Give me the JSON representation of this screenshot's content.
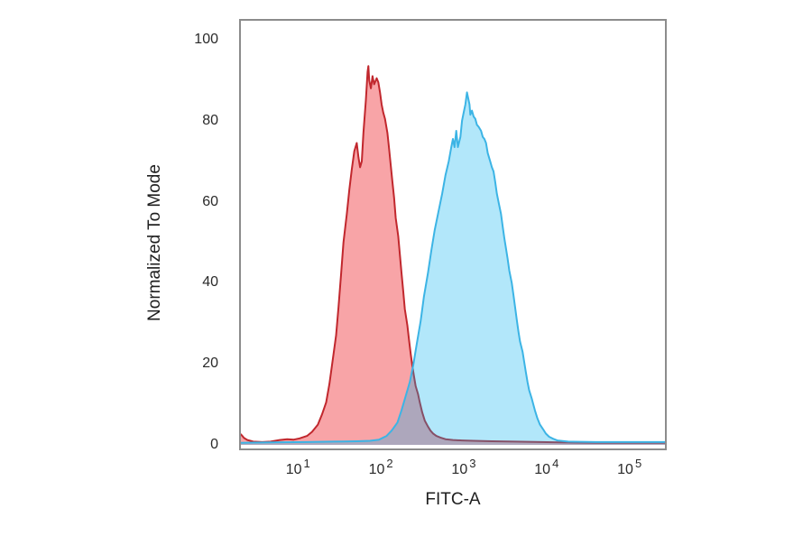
{
  "chart_data": {
    "type": "area",
    "title": "",
    "xlabel": "FITC-A",
    "ylabel": "Normalized To Mode",
    "x_scale": "log10",
    "xlim_log": [
      0.29,
      5.45
    ],
    "ylim": [
      0,
      100
    ],
    "grid": false,
    "legend": null,
    "x_ticks": [
      {
        "base": "10",
        "exp": "1",
        "log": 1
      },
      {
        "base": "10",
        "exp": "2",
        "log": 2
      },
      {
        "base": "10",
        "exp": "3",
        "log": 3
      },
      {
        "base": "10",
        "exp": "4",
        "log": 4
      },
      {
        "base": "10",
        "exp": "5",
        "log": 5
      }
    ],
    "y_ticks": [
      0,
      20,
      40,
      60,
      80,
      100
    ],
    "frame_color": "#8c8c8c",
    "series": [
      {
        "name": "red-population",
        "stroke": "#c1272d",
        "fill": "rgba(237,28,36,0.40)",
        "stroke_width": 2,
        "peak": {
          "log_x": 1.85,
          "value": 93.5
        },
        "points": [
          [
            0.29,
            3
          ],
          [
            0.32,
            2.4
          ],
          [
            0.35,
            1.7
          ],
          [
            0.39,
            1.2
          ],
          [
            0.46,
            0.8
          ],
          [
            0.57,
            0.7
          ],
          [
            0.67,
            0.8
          ],
          [
            0.78,
            1.2
          ],
          [
            0.87,
            1.4
          ],
          [
            0.95,
            1.3
          ],
          [
            1.02,
            1.6
          ],
          [
            1.11,
            2.2
          ],
          [
            1.17,
            3.2
          ],
          [
            1.24,
            5
          ],
          [
            1.29,
            7.5
          ],
          [
            1.34,
            10.5
          ],
          [
            1.38,
            15
          ],
          [
            1.42,
            21
          ],
          [
            1.46,
            27
          ],
          [
            1.49,
            34
          ],
          [
            1.52,
            42
          ],
          [
            1.55,
            50
          ],
          [
            1.59,
            57
          ],
          [
            1.62,
            63
          ],
          [
            1.65,
            68
          ],
          [
            1.68,
            72.5
          ],
          [
            1.71,
            74.5
          ],
          [
            1.73,
            71
          ],
          [
            1.75,
            68.5
          ],
          [
            1.77,
            70
          ],
          [
            1.79,
            77
          ],
          [
            1.82,
            85
          ],
          [
            1.84,
            92
          ],
          [
            1.85,
            93.5
          ],
          [
            1.86,
            90
          ],
          [
            1.88,
            88
          ],
          [
            1.9,
            91
          ],
          [
            1.92,
            89
          ],
          [
            1.95,
            90.5
          ],
          [
            1.97,
            89.5
          ],
          [
            1.99,
            87
          ],
          [
            2.01,
            84
          ],
          [
            2.03,
            82
          ],
          [
            2.05,
            80.5
          ],
          [
            2.08,
            77
          ],
          [
            2.1,
            73
          ],
          [
            2.12,
            69
          ],
          [
            2.14,
            65
          ],
          [
            2.16,
            61
          ],
          [
            2.18,
            56
          ],
          [
            2.21,
            51.5
          ],
          [
            2.23,
            47
          ],
          [
            2.25,
            42.5
          ],
          [
            2.27,
            38
          ],
          [
            2.29,
            33.5
          ],
          [
            2.32,
            29.5
          ],
          [
            2.34,
            26
          ],
          [
            2.36,
            22.5
          ],
          [
            2.38,
            19.5
          ],
          [
            2.4,
            17
          ],
          [
            2.42,
            14.5
          ],
          [
            2.45,
            12.5
          ],
          [
            2.47,
            10.5
          ],
          [
            2.5,
            8
          ],
          [
            2.53,
            6
          ],
          [
            2.57,
            4.5
          ],
          [
            2.6,
            3.5
          ],
          [
            2.63,
            2.8
          ],
          [
            2.67,
            2.2
          ],
          [
            2.72,
            1.8
          ],
          [
            2.78,
            1.4
          ],
          [
            2.87,
            1.2
          ],
          [
            2.98,
            1.1
          ],
          [
            3.12,
            1.0
          ],
          [
            3.34,
            0.9
          ],
          [
            3.61,
            0.8
          ],
          [
            3.93,
            0.7
          ],
          [
            4.15,
            0.6
          ],
          [
            4.59,
            0.5
          ],
          [
            5.02,
            0.5
          ],
          [
            5.45,
            0.5
          ]
        ]
      },
      {
        "name": "blue-population",
        "stroke": "#3cb4e5",
        "fill": "rgba(0,174,239,0.30)",
        "stroke_width": 2,
        "peak": {
          "log_x": 3.04,
          "value": 87
        },
        "points": [
          [
            0.29,
            0.5
          ],
          [
            0.67,
            0.6
          ],
          [
            1.11,
            0.7
          ],
          [
            1.43,
            0.8
          ],
          [
            1.71,
            0.9
          ],
          [
            1.87,
            1.0
          ],
          [
            1.98,
            1.3
          ],
          [
            2.07,
            2.2
          ],
          [
            2.13,
            3.5
          ],
          [
            2.2,
            5.5
          ],
          [
            2.25,
            8.5
          ],
          [
            2.3,
            12
          ],
          [
            2.35,
            15.5
          ],
          [
            2.39,
            19.5
          ],
          [
            2.43,
            24.5
          ],
          [
            2.48,
            30.5
          ],
          [
            2.52,
            36.5
          ],
          [
            2.57,
            42.5
          ],
          [
            2.61,
            48
          ],
          [
            2.65,
            53
          ],
          [
            2.7,
            58
          ],
          [
            2.74,
            62
          ],
          [
            2.78,
            66.5
          ],
          [
            2.82,
            70
          ],
          [
            2.85,
            73.5
          ],
          [
            2.87,
            75.5
          ],
          [
            2.89,
            73.5
          ],
          [
            2.91,
            77.5
          ],
          [
            2.93,
            73.5
          ],
          [
            2.96,
            76
          ],
          [
            2.98,
            80
          ],
          [
            3.0,
            82
          ],
          [
            3.02,
            84
          ],
          [
            3.04,
            87
          ],
          [
            3.07,
            84
          ],
          [
            3.08,
            81.5
          ],
          [
            3.1,
            82.5
          ],
          [
            3.12,
            81
          ],
          [
            3.14,
            80.5
          ],
          [
            3.16,
            79
          ],
          [
            3.18,
            78.5
          ],
          [
            3.21,
            77.5
          ],
          [
            3.23,
            76
          ],
          [
            3.25,
            75.5
          ],
          [
            3.27,
            74.5
          ],
          [
            3.29,
            72
          ],
          [
            3.32,
            70
          ],
          [
            3.34,
            68.5
          ],
          [
            3.36,
            67.5
          ],
          [
            3.38,
            65
          ],
          [
            3.4,
            62
          ],
          [
            3.42,
            60
          ],
          [
            3.45,
            57
          ],
          [
            3.47,
            54
          ],
          [
            3.49,
            51
          ],
          [
            3.51,
            48.5
          ],
          [
            3.53,
            46
          ],
          [
            3.55,
            43
          ],
          [
            3.58,
            40
          ],
          [
            3.6,
            37
          ],
          [
            3.62,
            34
          ],
          [
            3.64,
            31
          ],
          [
            3.66,
            28
          ],
          [
            3.68,
            25.5
          ],
          [
            3.71,
            23
          ],
          [
            3.73,
            20.5
          ],
          [
            3.75,
            18
          ],
          [
            3.77,
            15.5
          ],
          [
            3.79,
            13.5
          ],
          [
            3.82,
            11.5
          ],
          [
            3.84,
            10
          ],
          [
            3.86,
            8.5
          ],
          [
            3.89,
            6.5
          ],
          [
            3.92,
            5
          ],
          [
            3.96,
            3.8
          ],
          [
            3.99,
            2.8
          ],
          [
            4.03,
            2
          ],
          [
            4.08,
            1.5
          ],
          [
            4.13,
            1.1
          ],
          [
            4.26,
            0.8
          ],
          [
            4.59,
            0.7
          ],
          [
            5.02,
            0.7
          ],
          [
            5.45,
            0.7
          ]
        ]
      }
    ]
  }
}
